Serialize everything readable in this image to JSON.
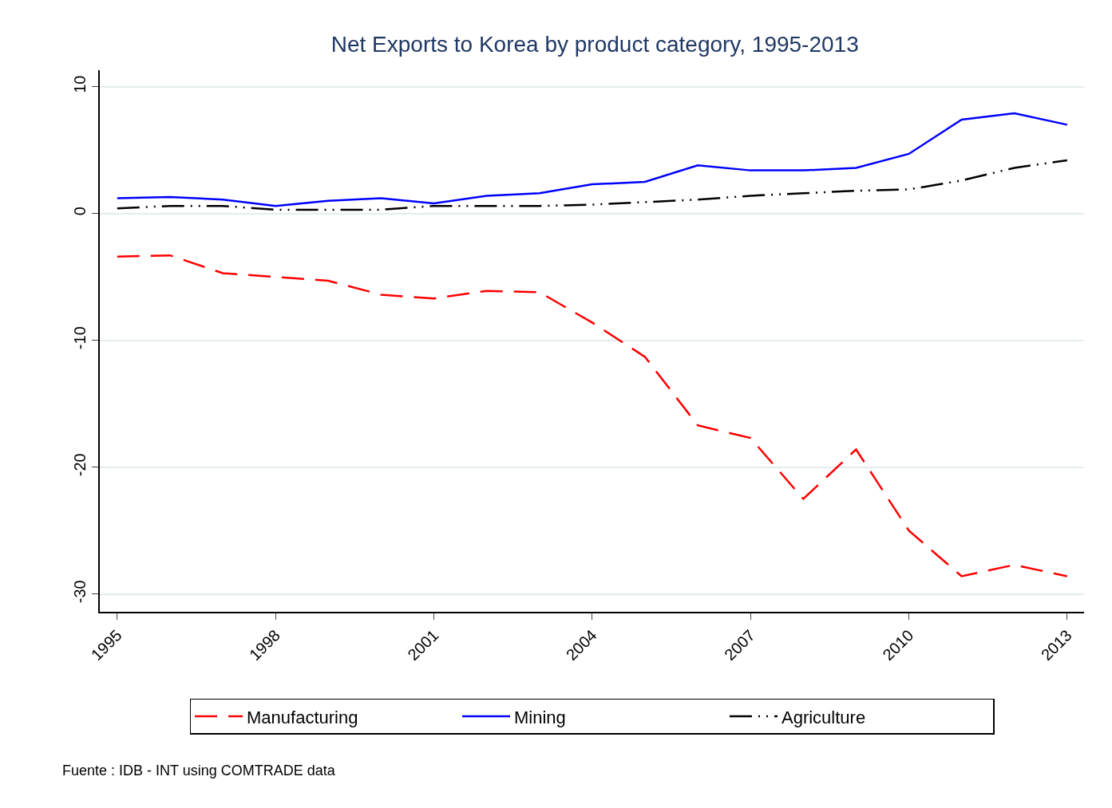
{
  "chart_data": {
    "type": "line",
    "title": "Net Exports to Korea by product category, 1995-2013",
    "x": [
      1995,
      1996,
      1997,
      1998,
      1999,
      2000,
      2001,
      2002,
      2003,
      2004,
      2005,
      2006,
      2007,
      2008,
      2009,
      2010,
      2011,
      2012,
      2013
    ],
    "series": [
      {
        "name": "Manufacturing",
        "color": "#ff0000",
        "line_style": "dashed",
        "values": [
          -3.4,
          -3.3,
          -4.7,
          -5.0,
          -5.3,
          -6.4,
          -6.7,
          -6.1,
          -6.2,
          -8.6,
          -11.3,
          -16.7,
          -17.7,
          -22.5,
          -18.6,
          -25.0,
          -28.6,
          -27.7,
          -28.6
        ]
      },
      {
        "name": "Mining",
        "color": "#0000ff",
        "line_style": "solid",
        "values": [
          1.2,
          1.3,
          1.1,
          0.6,
          1.0,
          1.2,
          0.8,
          1.4,
          1.6,
          2.3,
          2.5,
          3.8,
          3.4,
          3.4,
          3.6,
          4.7,
          7.4,
          7.9,
          7.0
        ]
      },
      {
        "name": "Agriculture",
        "color": "#000000",
        "line_style": "dashdot",
        "values": [
          0.4,
          0.6,
          0.6,
          0.3,
          0.3,
          0.3,
          0.6,
          0.6,
          0.6,
          0.7,
          0.9,
          1.1,
          1.4,
          1.6,
          1.8,
          1.9,
          2.6,
          3.6,
          4.2
        ]
      }
    ],
    "xlim": [
      1994.67,
      2013.32
    ],
    "xticks": [
      1995,
      1998,
      2001,
      2004,
      2007,
      2010,
      2013
    ],
    "ylim": [
      -31.4,
      11.3
    ],
    "yticks": [
      -30,
      -20,
      -10,
      0,
      10
    ],
    "grid": "y",
    "legend": "bottom",
    "marker": "none",
    "annotations": [
      "Fuente : IDB - INT using COMTRADE data"
    ]
  }
}
